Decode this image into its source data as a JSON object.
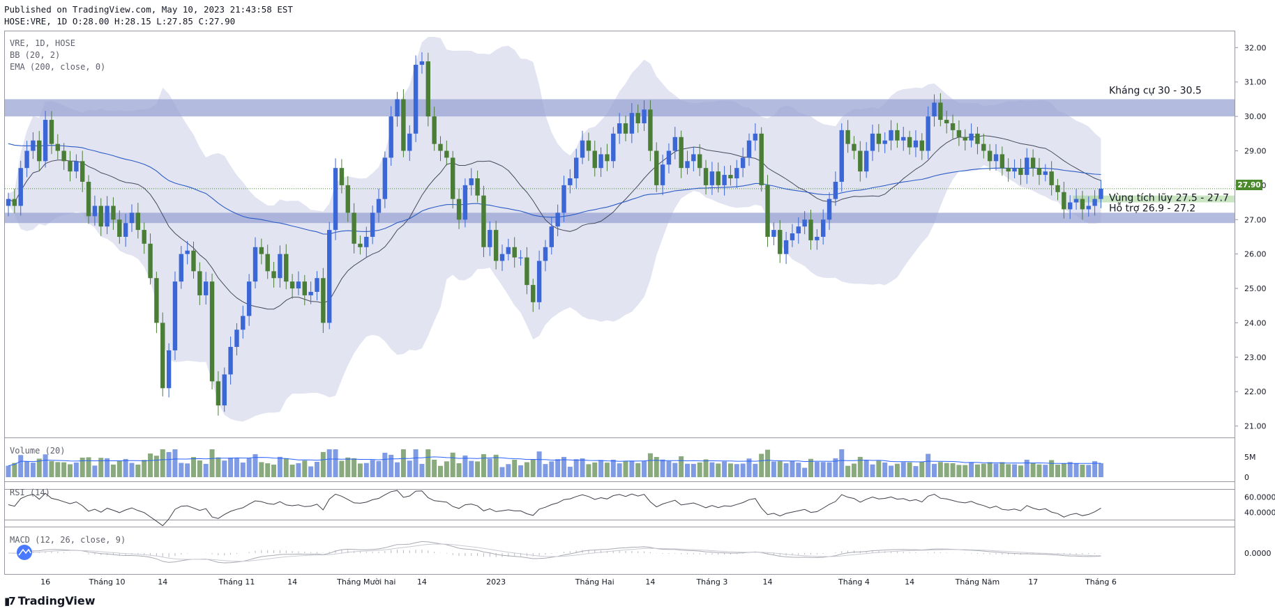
{
  "header": {
    "published": "Published on TradingView.com, May 10, 2023 21:43:58 EST",
    "ohlc": "HOSE:VRE, 1D O:28.00 H:28.15 L:27.85 C:27.90"
  },
  "legend": {
    "symbol": "VRE, 1D, HOSE",
    "bb": "BB (20, 2)",
    "ema": "EMA (200, close, 0)",
    "volume": "Volume (20)",
    "rsi": "RSI (14)",
    "macd": "MACD (12, 26, close, 9)"
  },
  "brand": "TradingView",
  "colors": {
    "up": "#3a66d6",
    "down": "#4a7d36",
    "bb_fill": "#e2e4f2",
    "zone_fill": "#9aa4d4",
    "ema": "#2c5cc5",
    "bb_basis": "#444a5c",
    "price_tag": "#4a8a2a"
  },
  "chart_data": {
    "type": "candlestick",
    "y_ticks": [
      "32.00",
      "31.00",
      "30.00",
      "29.00",
      "28.00",
      "27.00",
      "26.00",
      "25.00",
      "24.00",
      "23.00",
      "22.00",
      "21.00"
    ],
    "ylim": [
      20.85,
      32.25
    ],
    "x_ticks": [
      {
        "label": "16",
        "i": 6
      },
      {
        "label": "Tháng 10",
        "i": 16
      },
      {
        "label": "14",
        "i": 25
      },
      {
        "label": "Tháng 11",
        "i": 37
      },
      {
        "label": "14",
        "i": 46
      },
      {
        "label": "Tháng Mười hai",
        "i": 58
      },
      {
        "label": "14",
        "i": 67
      },
      {
        "label": "2023",
        "i": 79
      },
      {
        "label": "Tháng Hai",
        "i": 95
      },
      {
        "label": "14",
        "i": 104
      },
      {
        "label": "Tháng 3",
        "i": 114
      },
      {
        "label": "14",
        "i": 123
      },
      {
        "label": "Tháng 4",
        "i": 137
      },
      {
        "label": "14",
        "i": 146
      },
      {
        "label": "Tháng Năm",
        "i": 157
      },
      {
        "label": "17",
        "i": 166
      },
      {
        "label": "Tháng 6",
        "i": 177
      }
    ],
    "last_price": "27.90",
    "zones": [
      {
        "label": "Kháng cự 30 - 30.5",
        "low": 30.0,
        "high": 30.5
      },
      {
        "label": "Vùng tích lũy 27.5 - 27.7",
        "low": 27.5,
        "high": 27.7
      },
      {
        "label": "Hỗ trợ 26.9 - 27.2",
        "low": 26.9,
        "high": 27.2
      }
    ],
    "close": [
      27.6,
      27.4,
      28.5,
      29.0,
      29.3,
      28.7,
      29.9,
      29.2,
      29.0,
      28.7,
      28.4,
      28.7,
      28.1,
      27.1,
      27.4,
      26.8,
      27.4,
      27.0,
      26.5,
      26.9,
      27.2,
      26.7,
      26.3,
      25.3,
      24.0,
      22.1,
      23.2,
      25.2,
      26.0,
      26.1,
      25.5,
      24.8,
      25.2,
      22.3,
      21.6,
      22.5,
      23.3,
      23.8,
      24.2,
      25.2,
      26.2,
      26.0,
      25.5,
      25.3,
      26.0,
      25.2,
      25.0,
      25.2,
      24.8,
      24.9,
      25.3,
      24.0,
      26.7,
      28.5,
      28.0,
      27.2,
      26.3,
      26.2,
      26.5,
      27.2,
      27.6,
      28.8,
      30.0,
      30.5,
      29.0,
      29.5,
      31.5,
      31.6,
      30.0,
      29.2,
      29.0,
      28.8,
      27.6,
      27.0,
      28.0,
      28.2,
      27.7,
      26.2,
      26.7,
      25.8,
      26.0,
      26.2,
      25.9,
      25.9,
      25.1,
      24.6,
      25.8,
      26.2,
      26.8,
      27.2,
      28.0,
      28.2,
      28.8,
      29.3,
      29.0,
      28.5,
      28.9,
      28.7,
      29.5,
      29.8,
      29.5,
      30.1,
      29.8,
      30.2,
      29.0,
      28.0,
      28.6,
      29.0,
      29.4,
      28.5,
      28.7,
      28.9,
      28.5,
      28.0,
      28.4,
      28.0,
      28.3,
      28.2,
      28.5,
      28.8,
      29.3,
      29.5,
      28.0,
      26.5,
      26.7,
      26.0,
      26.4,
      26.6,
      26.8,
      27.0,
      26.4,
      26.5,
      27.0,
      27.6,
      28.1,
      29.6,
      29.2,
      29.0,
      28.4,
      29.0,
      29.5,
      29.2,
      29.3,
      29.6,
      29.3,
      29.4,
      29.1,
      29.3,
      29.0,
      30.0,
      30.4,
      29.9,
      29.8,
      29.6,
      29.4,
      29.3,
      29.5,
      29.2,
      29.0,
      28.7,
      28.9,
      28.5,
      28.4,
      28.5,
      28.3,
      28.8,
      28.5,
      28.3,
      28.4,
      28.0,
      27.8,
      27.3,
      27.5,
      27.6,
      27.3,
      27.4,
      27.6,
      27.9
    ],
    "volume_max_label": "5M",
    "rsi_ticks": [
      "60.0000",
      "40.0000"
    ],
    "macd_tick": "0.0000"
  }
}
